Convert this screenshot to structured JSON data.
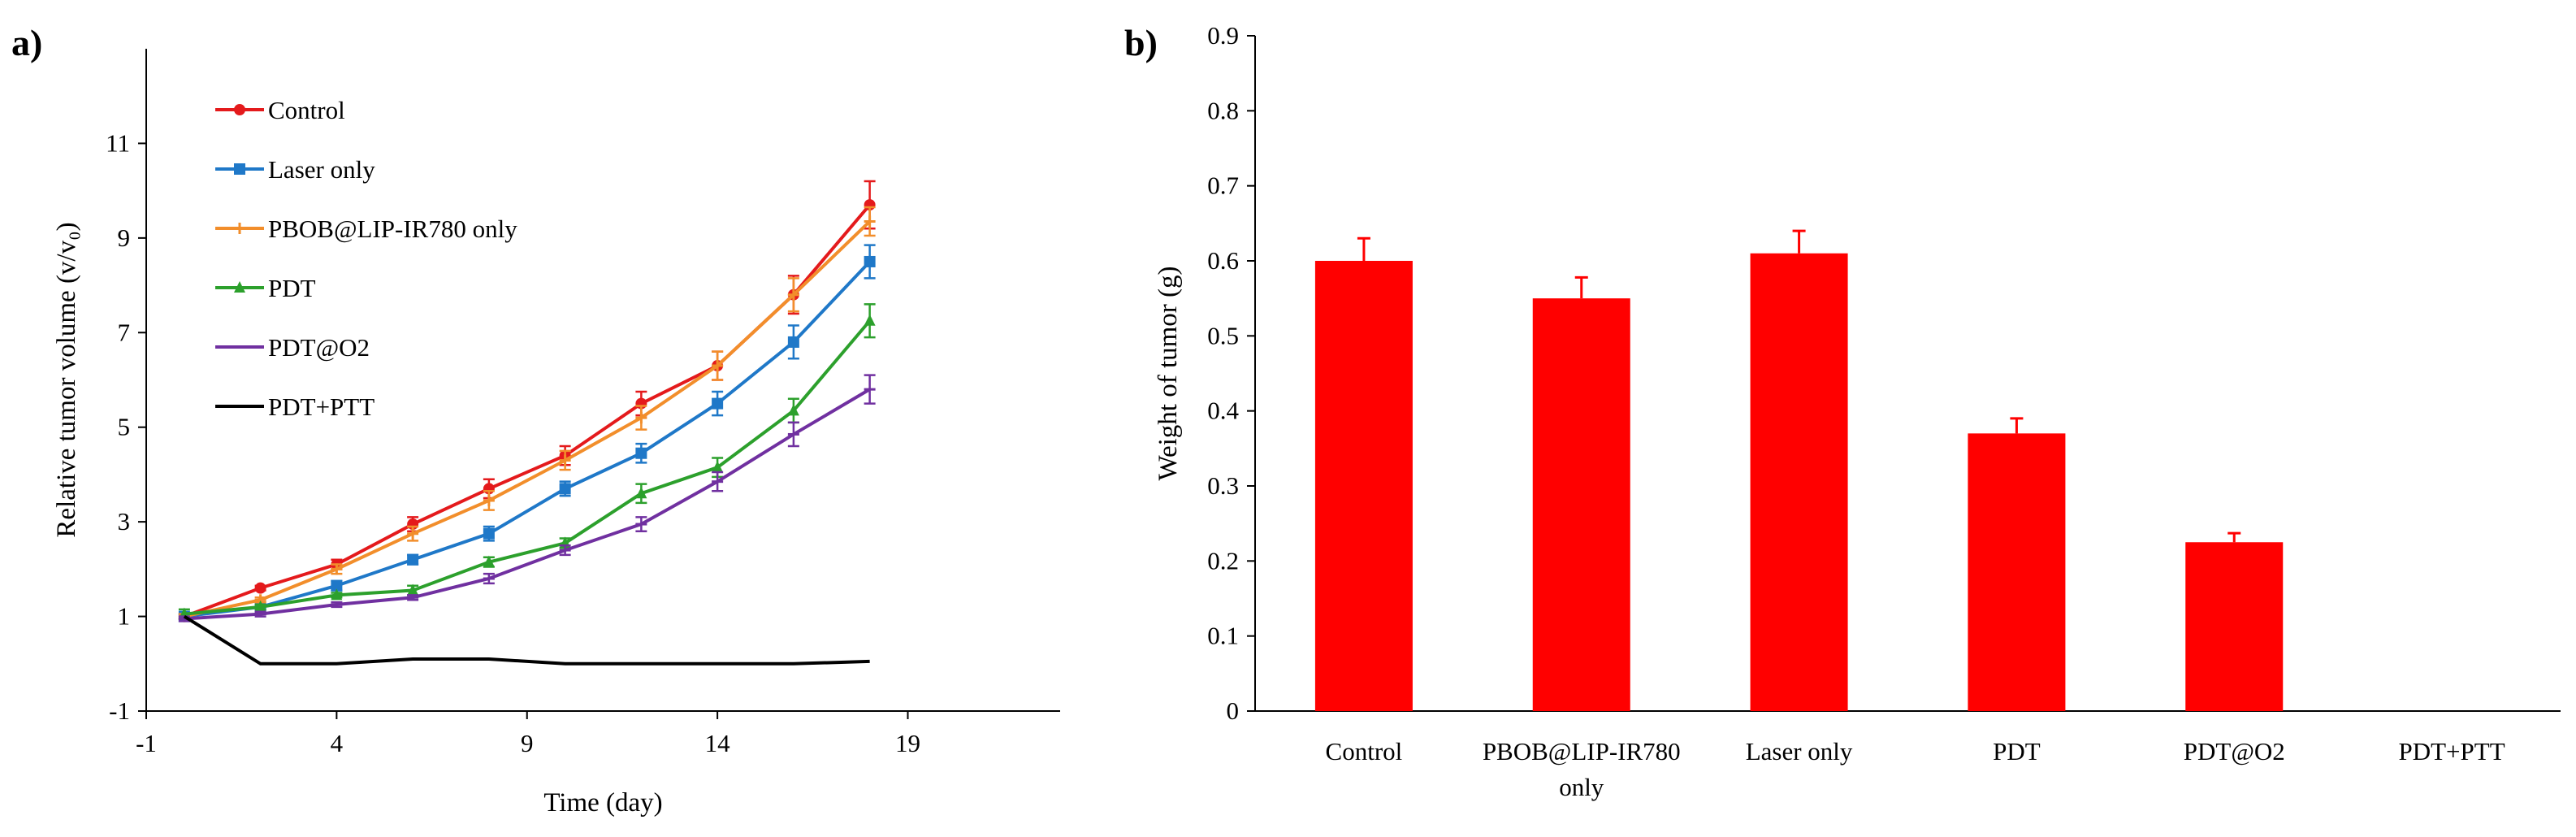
{
  "panel_a_label": "a)",
  "panel_b_label": "b)",
  "chart_data": [
    {
      "type": "line",
      "title": "",
      "xlabel": "Time (day)",
      "ylabel": "Relative tumor volume (v/v₀)",
      "xlim": [
        -1,
        23
      ],
      "ylim": [
        -1,
        13
      ],
      "xticks": [
        "-1",
        "4",
        "9",
        "14",
        "19"
      ],
      "xtick_values": [
        -1,
        4,
        9,
        14,
        19
      ],
      "yticks": [
        "-1",
        "1",
        "3",
        "5",
        "7",
        "9",
        "11"
      ],
      "ytick_values": [
        -1,
        1,
        3,
        5,
        7,
        9,
        11
      ],
      "x": [
        0,
        2,
        4,
        6,
        8,
        10,
        12,
        14,
        16,
        18
      ],
      "series": [
        {
          "name": "Control",
          "color": "#e41a1c",
          "marker": "circle",
          "values": [
            1.0,
            1.6,
            2.1,
            2.95,
            3.7,
            4.4,
            5.5,
            6.3,
            7.8,
            9.7
          ],
          "errors": [
            0.05,
            0.05,
            0.1,
            0.15,
            0.2,
            0.2,
            0.25,
            0.3,
            0.4,
            0.5
          ]
        },
        {
          "name": "Laser only",
          "color": "#1f78c8",
          "marker": "square",
          "values": [
            1.0,
            1.2,
            1.65,
            2.2,
            2.75,
            3.7,
            4.45,
            5.5,
            6.8,
            8.5
          ],
          "errors": [
            0.05,
            0.05,
            0.1,
            0.1,
            0.15,
            0.15,
            0.2,
            0.25,
            0.35,
            0.35
          ]
        },
        {
          "name": "PBOB@LIP-IR780 only",
          "color": "#f28e2b",
          "marker": "plus",
          "values": [
            1.0,
            1.35,
            2.0,
            2.75,
            3.45,
            4.3,
            5.2,
            6.3,
            7.8,
            9.35
          ],
          "errors": [
            0.05,
            0.05,
            0.1,
            0.15,
            0.2,
            0.2,
            0.25,
            0.3,
            0.35,
            0.3
          ]
        },
        {
          "name": "PDT",
          "color": "#2ca02c",
          "marker": "triangle",
          "values": [
            1.05,
            1.2,
            1.45,
            1.55,
            2.15,
            2.55,
            3.6,
            4.15,
            5.35,
            7.25
          ],
          "errors": [
            0.1,
            0.05,
            0.05,
            0.1,
            0.1,
            0.1,
            0.2,
            0.2,
            0.25,
            0.35
          ]
        },
        {
          "name": "PDT@O2",
          "color": "#7030a0",
          "marker": "dash",
          "values": [
            0.95,
            1.05,
            1.25,
            1.4,
            1.8,
            2.4,
            2.95,
            3.85,
            4.85,
            5.8
          ],
          "errors": [
            0.05,
            0.05,
            0.05,
            0.05,
            0.1,
            0.1,
            0.15,
            0.2,
            0.25,
            0.3
          ]
        },
        {
          "name": "PDT+PTT",
          "color": "#000000",
          "marker": "none",
          "values": [
            1.0,
            0.0,
            0.0,
            0.1,
            0.1,
            0.0,
            0.0,
            0.0,
            0.0,
            0.05
          ],
          "errors": [
            0,
            0,
            0,
            0,
            0,
            0,
            0,
            0,
            0,
            0
          ]
        }
      ],
      "legend": "upper-left, inside plot"
    },
    {
      "type": "bar",
      "title": "",
      "xlabel": "",
      "ylabel": "Weight of tumor (g)",
      "ylim": [
        0,
        0.9
      ],
      "yticks": [
        "0",
        "0.1",
        "0.2",
        "0.3",
        "0.4",
        "0.5",
        "0.6",
        "0.7",
        "0.8",
        "0.9"
      ],
      "ytick_values": [
        0,
        0.1,
        0.2,
        0.3,
        0.4,
        0.5,
        0.6,
        0.7,
        0.8,
        0.9
      ],
      "categories": [
        [
          "Control"
        ],
        [
          "PBOB@LIP-IR780",
          "only"
        ],
        [
          "Laser only"
        ],
        [
          "PDT"
        ],
        [
          "PDT@O2"
        ],
        [
          "PDT+PTT"
        ]
      ],
      "values": [
        0.6,
        0.55,
        0.61,
        0.37,
        0.225,
        0.0
      ],
      "errors": [
        0.03,
        0.028,
        0.03,
        0.02,
        0.012,
        0.0
      ],
      "color": "#ff0000"
    }
  ]
}
